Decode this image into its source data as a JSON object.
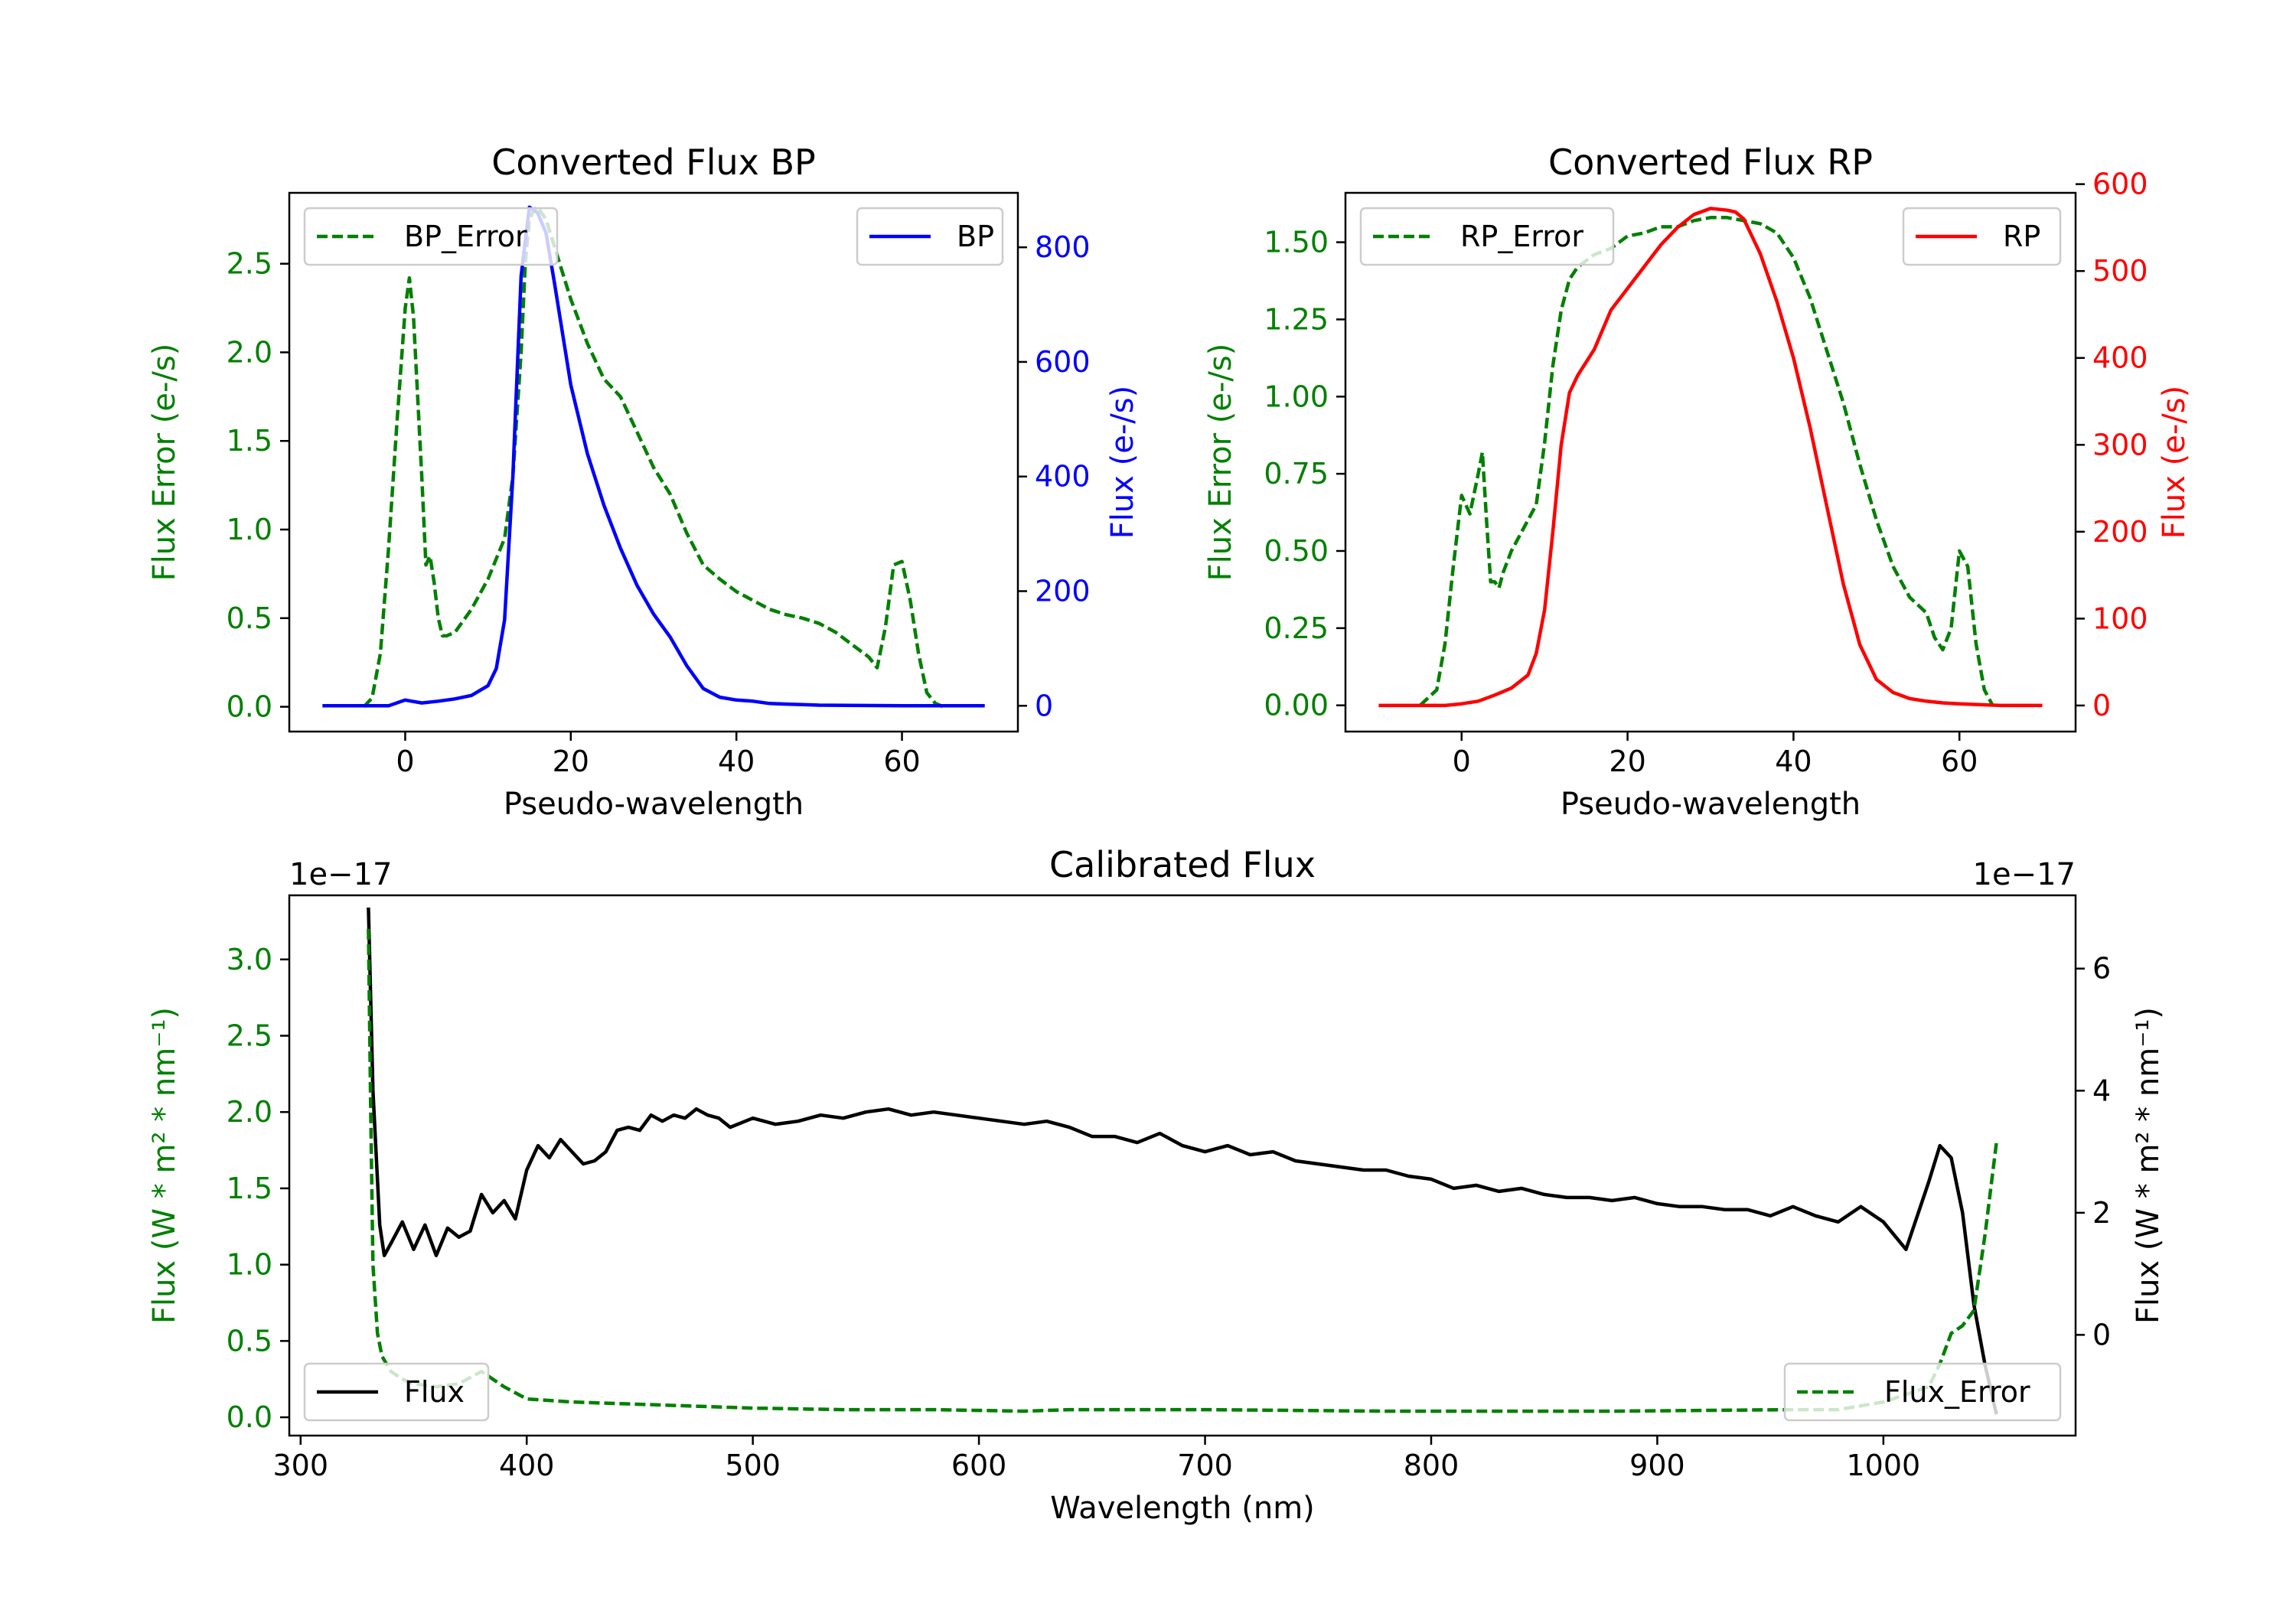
{
  "colors": {
    "green": "#008000",
    "blue": "#0000ff",
    "red": "#ff0000",
    "black": "#000000"
  },
  "chart_data": [
    {
      "type": "line",
      "title": "Converted Flux BP",
      "xlabel": "Pseudo-wavelength",
      "ylabel_left": "Flux Error (e-/s)",
      "ylabel_right": "Flux (e-/s)",
      "xlim": [
        -14,
        74
      ],
      "ylim_left": [
        -0.14,
        2.9
      ],
      "ylim_right": [
        -45,
        895
      ],
      "xticks": [
        0,
        20,
        40,
        60
      ],
      "yticks_left": [
        0.0,
        0.5,
        1.0,
        1.5,
        2.0,
        2.5
      ],
      "ytick_labels_left": [
        "0.0",
        "0.5",
        "1.0",
        "1.5",
        "2.0",
        "2.5"
      ],
      "yticks_right": [
        0,
        200,
        400,
        600,
        800
      ],
      "ytick_labels_right": [
        "0",
        "200",
        "400",
        "600",
        "800"
      ],
      "legend_left": "top-left",
      "legend_right": "top-right",
      "series": [
        {
          "name": "BP_Error",
          "axis": "left",
          "color": "#008000",
          "style": "dashed",
          "x": [
            -5,
            -4,
            -3,
            -2,
            -1,
            0,
            0.5,
            1,
            2,
            2.5,
            3,
            3.5,
            4,
            4.5,
            5,
            6,
            8,
            10,
            12,
            13,
            14,
            14.5,
            15,
            15.5,
            16,
            17,
            18,
            20,
            22,
            24,
            26,
            28,
            30,
            32,
            34,
            36,
            38,
            40,
            42,
            44,
            46,
            48,
            50,
            52,
            54,
            56,
            57,
            58,
            59,
            60,
            61,
            62,
            63,
            64,
            65
          ],
          "y": [
            0.0,
            0.05,
            0.3,
            0.9,
            1.6,
            2.25,
            2.42,
            2.2,
            1.3,
            0.8,
            0.85,
            0.7,
            0.5,
            0.4,
            0.4,
            0.42,
            0.55,
            0.72,
            0.95,
            1.3,
            2.0,
            2.5,
            2.75,
            2.8,
            2.82,
            2.75,
            2.6,
            2.3,
            2.05,
            1.85,
            1.75,
            1.55,
            1.35,
            1.2,
            0.98,
            0.8,
            0.72,
            0.65,
            0.6,
            0.55,
            0.52,
            0.5,
            0.47,
            0.42,
            0.35,
            0.28,
            0.22,
            0.45,
            0.8,
            0.82,
            0.6,
            0.3,
            0.08,
            0.02,
            0.0
          ]
        },
        {
          "name": "BP",
          "axis": "right",
          "color": "#0000ff",
          "style": "solid",
          "x": [
            -10,
            -2,
            0,
            2,
            4,
            6,
            8,
            10,
            11,
            12,
            13,
            14,
            15,
            16,
            17,
            18,
            20,
            22,
            24,
            26,
            28,
            30,
            32,
            34,
            36,
            38,
            40,
            42,
            44,
            46,
            48,
            50,
            55,
            60,
            65,
            70
          ],
          "y": [
            0,
            0,
            10,
            5,
            8,
            12,
            18,
            35,
            65,
            150,
            400,
            750,
            870,
            860,
            825,
            740,
            560,
            440,
            350,
            275,
            210,
            160,
            120,
            70,
            30,
            15,
            10,
            8,
            4,
            3,
            2,
            1,
            0.5,
            0,
            0,
            0
          ]
        }
      ]
    },
    {
      "type": "line",
      "title": "Converted Flux RP",
      "xlabel": "Pseudo-wavelength",
      "ylabel_left": "Flux Error (e-/s)",
      "ylabel_right": "Flux (e-/s)",
      "xlim": [
        -14,
        74
      ],
      "ylim_left": [
        -0.085,
        1.66
      ],
      "ylim_right": [
        -30,
        590
      ],
      "xticks": [
        0,
        20,
        40,
        60
      ],
      "yticks_left": [
        0.0,
        0.25,
        0.5,
        0.75,
        1.0,
        1.25,
        1.5
      ],
      "ytick_labels_left": [
        "0.00",
        "0.25",
        "0.50",
        "0.75",
        "1.00",
        "1.25",
        "1.50"
      ],
      "yticks_right": [
        0,
        100,
        200,
        300,
        400,
        500,
        600
      ],
      "ytick_labels_right": [
        "0",
        "100",
        "200",
        "300",
        "400",
        "500",
        "600"
      ],
      "legend_left": "top-left",
      "legend_right": "top-right",
      "series": [
        {
          "name": "RP_Error",
          "axis": "left",
          "color": "#008000",
          "style": "dashed",
          "x": [
            -5,
            -3,
            -2,
            -1,
            0,
            1,
            2,
            2.5,
            3,
            3.5,
            4,
            4.5,
            5,
            6,
            8,
            9,
            10,
            11,
            12,
            13,
            14,
            16,
            18,
            20,
            22,
            24,
            26,
            28,
            30,
            32,
            34,
            36,
            38,
            40,
            42,
            44,
            46,
            48,
            50,
            52,
            54,
            56,
            57,
            58,
            59,
            60,
            61,
            62,
            63,
            64
          ],
          "y": [
            0.0,
            0.05,
            0.2,
            0.45,
            0.68,
            0.62,
            0.75,
            0.82,
            0.6,
            0.4,
            0.4,
            0.38,
            0.43,
            0.5,
            0.6,
            0.65,
            0.85,
            1.1,
            1.28,
            1.38,
            1.42,
            1.46,
            1.48,
            1.52,
            1.53,
            1.55,
            1.55,
            1.57,
            1.58,
            1.58,
            1.57,
            1.56,
            1.53,
            1.45,
            1.32,
            1.15,
            0.98,
            0.78,
            0.6,
            0.45,
            0.35,
            0.3,
            0.22,
            0.18,
            0.25,
            0.5,
            0.45,
            0.2,
            0.05,
            0.0
          ]
        },
        {
          "name": "RP",
          "axis": "right",
          "color": "#ff0000",
          "style": "solid",
          "x": [
            -10,
            -2,
            0,
            2,
            4,
            6,
            8,
            9,
            10,
            11,
            12,
            13,
            14,
            16,
            18,
            20,
            22,
            24,
            26,
            28,
            30,
            32,
            33,
            34,
            35,
            36,
            38,
            40,
            42,
            44,
            46,
            48,
            50,
            52,
            54,
            56,
            58,
            60,
            65,
            70
          ],
          "y": [
            0,
            0,
            2,
            5,
            12,
            20,
            35,
            60,
            110,
            200,
            300,
            360,
            380,
            410,
            455,
            480,
            505,
            530,
            550,
            565,
            572,
            570,
            568,
            560,
            540,
            520,
            465,
            400,
            320,
            230,
            140,
            70,
            30,
            15,
            8,
            5,
            3,
            2,
            0,
            0
          ]
        }
      ]
    },
    {
      "type": "line",
      "title": "Calibrated Flux",
      "xlabel": "Wavelength (nm)",
      "ylabel_left": "Flux (W * m² * nm⁻¹)",
      "ylabel_right": "Flux (W * m² * nm⁻¹)",
      "offset_left": "1e−17",
      "offset_right": "1e−17",
      "xlim": [
        295,
        1085
      ],
      "ylim_left": [
        -0.12,
        3.42
      ],
      "ylim_right": [
        -1.65,
        7.2
      ],
      "xticks": [
        300,
        400,
        500,
        600,
        700,
        800,
        900,
        1000
      ],
      "yticks_left": [
        0.0,
        0.5,
        1.0,
        1.5,
        2.0,
        2.5,
        3.0
      ],
      "ytick_labels_left": [
        "0.0",
        "0.5",
        "1.0",
        "1.5",
        "2.0",
        "2.5",
        "3.0"
      ],
      "yticks_right": [
        0,
        2,
        4,
        6
      ],
      "ytick_labels_right": [
        "0",
        "2",
        "4",
        "6"
      ],
      "legend_left": "bottom-left",
      "legend_right": "bottom-right",
      "series": [
        {
          "name": "Flux",
          "axis": "right",
          "color": "#000000",
          "style": "solid",
          "x": [
            330,
            332,
            335,
            337,
            340,
            345,
            350,
            355,
            360,
            365,
            370,
            375,
            380,
            385,
            390,
            395,
            400,
            405,
            410,
            415,
            420,
            425,
            430,
            435,
            440,
            445,
            450,
            455,
            460,
            465,
            470,
            475,
            480,
            485,
            490,
            500,
            510,
            520,
            530,
            540,
            550,
            560,
            570,
            580,
            590,
            600,
            610,
            620,
            630,
            640,
            650,
            660,
            670,
            680,
            690,
            700,
            710,
            720,
            730,
            740,
            750,
            760,
            770,
            780,
            790,
            800,
            810,
            820,
            830,
            840,
            850,
            860,
            870,
            880,
            890,
            900,
            910,
            920,
            930,
            940,
            950,
            960,
            970,
            980,
            990,
            1000,
            1010,
            1020,
            1025,
            1030,
            1035,
            1040,
            1045,
            1050
          ],
          "y": [
            7.0,
            4.0,
            1.8,
            1.3,
            1.5,
            1.85,
            1.4,
            1.8,
            1.3,
            1.75,
            1.6,
            1.7,
            2.3,
            2.0,
            2.2,
            1.9,
            2.7,
            3.1,
            2.9,
            3.2,
            3.0,
            2.8,
            2.85,
            3.0,
            3.35,
            3.4,
            3.35,
            3.6,
            3.5,
            3.6,
            3.55,
            3.7,
            3.6,
            3.55,
            3.4,
            3.55,
            3.45,
            3.5,
            3.6,
            3.55,
            3.65,
            3.7,
            3.6,
            3.65,
            3.6,
            3.55,
            3.5,
            3.45,
            3.5,
            3.4,
            3.25,
            3.25,
            3.15,
            3.3,
            3.1,
            3.0,
            3.1,
            2.95,
            3.0,
            2.85,
            2.8,
            2.75,
            2.7,
            2.7,
            2.6,
            2.55,
            2.4,
            2.45,
            2.35,
            2.4,
            2.3,
            2.25,
            2.25,
            2.2,
            2.25,
            2.15,
            2.1,
            2.1,
            2.05,
            2.05,
            1.95,
            2.1,
            1.95,
            1.85,
            2.1,
            1.85,
            1.4,
            2.5,
            3.1,
            2.9,
            2.0,
            0.5,
            -0.5,
            -1.3
          ]
        },
        {
          "name": "Flux_Error",
          "axis": "left",
          "color": "#008000",
          "style": "dashed",
          "x": [
            330,
            331,
            332,
            334,
            336,
            340,
            345,
            350,
            360,
            370,
            380,
            385,
            390,
            400,
            420,
            440,
            460,
            480,
            500,
            540,
            580,
            620,
            640,
            660,
            700,
            740,
            780,
            800,
            840,
            880,
            920,
            960,
            980,
            1000,
            1010,
            1020,
            1025,
            1030,
            1035,
            1040,
            1045,
            1050
          ],
          "y": [
            3.2,
            2.0,
            1.0,
            0.55,
            0.4,
            0.3,
            0.25,
            0.22,
            0.2,
            0.22,
            0.3,
            0.25,
            0.2,
            0.12,
            0.1,
            0.09,
            0.08,
            0.07,
            0.06,
            0.05,
            0.05,
            0.04,
            0.05,
            0.05,
            0.05,
            0.045,
            0.04,
            0.04,
            0.04,
            0.04,
            0.045,
            0.05,
            0.05,
            0.1,
            0.15,
            0.2,
            0.35,
            0.55,
            0.6,
            0.7,
            1.2,
            1.8
          ]
        }
      ]
    }
  ]
}
